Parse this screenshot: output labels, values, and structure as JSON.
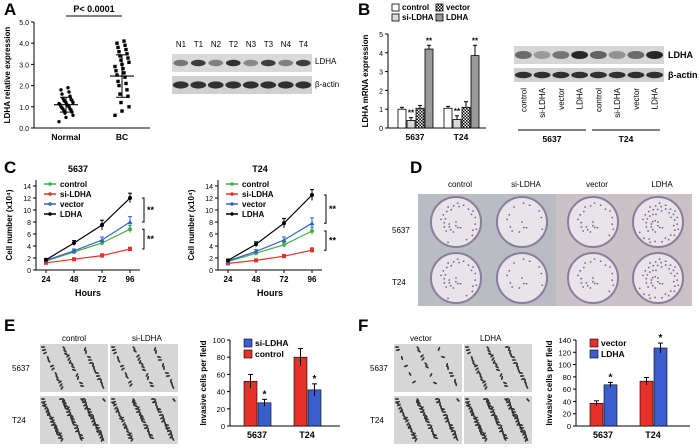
{
  "panels": {
    "A": {
      "letter": "A",
      "ylabel": "LDHA relative expression",
      "pvalue": "P< 0.0001",
      "groups": [
        "Normal",
        "BC"
      ],
      "blot_lanes": [
        "N1",
        "T1",
        "N2",
        "T2",
        "N3",
        "T3",
        "N4",
        "T4"
      ],
      "blot_rows": [
        "LDHA",
        "β-actin"
      ]
    },
    "B": {
      "letter": "B",
      "ylabel": "LDHA mRNA expression",
      "legend": [
        "control",
        "si-LDHA",
        "vector",
        "LDHA"
      ],
      "sig": "**",
      "blot_lanes": [
        "control",
        "si-LDHA",
        "vector",
        "LDHA",
        "control",
        "si-LDHA",
        "vector",
        "LDHA"
      ],
      "blot_groups": [
        "5637",
        "T24"
      ],
      "blot_rows": [
        "LDHA",
        "β-actin"
      ]
    },
    "C": {
      "letter": "C",
      "legend": [
        "control",
        "si-LDHA",
        "vector",
        "LDHA"
      ],
      "sig": "**"
    },
    "D": {
      "letter": "D",
      "cols": [
        "control",
        "si-LDHA",
        "vector",
        "LDHA"
      ],
      "rows": [
        "5637",
        "T24"
      ]
    },
    "E": {
      "letter": "E",
      "cols": [
        "control",
        "si-LDHA"
      ],
      "rows": [
        "5637",
        "T24"
      ],
      "ylabel": "Invasive cells per field",
      "sig": "*"
    },
    "F": {
      "letter": "F",
      "cols": [
        "vector",
        "LDHA"
      ],
      "rows": [
        "5637",
        "T24"
      ],
      "ylabel": "Invasive cells per field",
      "sig": "*"
    }
  },
  "chart_data": [
    {
      "id": "A-scatter",
      "type": "scatter",
      "categories": [
        "Normal",
        "BC"
      ],
      "ylabel": "LDHA relative expression",
      "ylim": [
        0,
        5
      ],
      "yticks": [
        "0.0",
        "1.0",
        "2.0",
        "3.0",
        "4.0",
        "5.0"
      ],
      "series": [
        {
          "values": [
            0.3,
            0.5,
            0.6,
            0.7,
            0.75,
            0.8,
            0.85,
            0.9,
            0.9,
            0.95,
            1.0,
            1.0,
            1.05,
            1.1,
            1.1,
            1.15,
            1.2,
            1.2,
            1.25,
            1.3,
            1.3,
            1.35,
            1.4,
            1.5,
            1.6,
            1.7,
            1.8,
            1.9
          ],
          "mean": 1.1,
          "sd": 0.35
        },
        {
          "values": [
            0.6,
            0.8,
            1.0,
            1.2,
            1.5,
            1.6,
            1.8,
            2.0,
            2.1,
            2.2,
            2.4,
            2.5,
            2.6,
            2.7,
            2.8,
            2.9,
            3.0,
            3.1,
            3.2,
            3.3,
            3.4,
            3.5,
            3.6,
            3.7,
            3.8,
            3.9,
            4.0,
            4.1
          ],
          "mean": 2.45,
          "sd": 1.0
        }
      ]
    },
    {
      "id": "B-bar",
      "type": "bar",
      "categories": [
        "5637",
        "T24"
      ],
      "ylabel": "LDHA mRNA expression",
      "ylim": [
        0,
        5
      ],
      "yticks": [
        "0",
        "1",
        "2",
        "3",
        "4",
        "5"
      ],
      "series": [
        {
          "name": "control",
          "values": [
            1.0,
            1.05
          ],
          "err": [
            0.1,
            0.1
          ]
        },
        {
          "name": "si-LDHA",
          "values": [
            0.4,
            0.45
          ],
          "err": [
            0.15,
            0.2
          ]
        },
        {
          "name": "vector",
          "values": [
            1.05,
            1.1
          ],
          "err": [
            0.15,
            0.3
          ]
        },
        {
          "name": "LDHA",
          "values": [
            4.2,
            3.85
          ],
          "err": [
            0.2,
            0.55
          ]
        }
      ]
    },
    {
      "id": "C-5637",
      "type": "line",
      "title": "5637",
      "xlabel": "Hours",
      "ylabel": "Cell number (x10⁴)",
      "x": [
        24,
        48,
        72,
        96
      ],
      "xticks": [
        "24",
        "48",
        "72",
        "96"
      ],
      "ylim": [
        0,
        15
      ],
      "yticks": [
        "0",
        "2",
        "4",
        "6",
        "8",
        "10",
        "12",
        "14"
      ],
      "series": [
        {
          "name": "control",
          "values": [
            1.5,
            3.0,
            4.5,
            6.8
          ],
          "err": [
            0.2,
            0.3,
            0.4,
            0.6
          ],
          "color": "#3cb44b"
        },
        {
          "name": "si-LDHA",
          "values": [
            1.2,
            1.8,
            2.4,
            3.5
          ],
          "err": [
            0.1,
            0.2,
            0.3,
            0.3
          ],
          "color": "#e6302a"
        },
        {
          "name": "vector",
          "values": [
            1.6,
            3.2,
            5.0,
            8.0
          ],
          "err": [
            0.2,
            0.3,
            0.5,
            0.9
          ],
          "color": "#3a5fcd"
        },
        {
          "name": "LDHA",
          "values": [
            1.7,
            4.5,
            7.5,
            12.0
          ],
          "err": [
            0.2,
            0.4,
            0.8,
            0.8
          ],
          "color": "#000000"
        }
      ]
    },
    {
      "id": "C-T24",
      "type": "line",
      "title": "T24",
      "xlabel": "Hours",
      "ylabel": "Cell number (x10⁴)",
      "x": [
        24,
        48,
        72,
        96
      ],
      "xticks": [
        "24",
        "48",
        "72",
        "96"
      ],
      "ylim": [
        0,
        15
      ],
      "yticks": [
        "0",
        "2",
        "4",
        "6",
        "8",
        "10",
        "12",
        "14"
      ],
      "series": [
        {
          "name": "control",
          "values": [
            1.4,
            2.8,
            4.2,
            6.5
          ],
          "err": [
            0.2,
            0.3,
            0.4,
            0.6
          ],
          "color": "#3cb44b"
        },
        {
          "name": "si-LDHA",
          "values": [
            1.1,
            1.6,
            2.3,
            3.3
          ],
          "err": [
            0.1,
            0.2,
            0.3,
            0.4
          ],
          "color": "#e6302a"
        },
        {
          "name": "vector",
          "values": [
            1.5,
            3.1,
            5.0,
            7.8
          ],
          "err": [
            0.2,
            0.3,
            0.5,
            0.9
          ],
          "color": "#3a5fcd"
        },
        {
          "name": "LDHA",
          "values": [
            1.6,
            4.3,
            7.8,
            12.5
          ],
          "err": [
            0.2,
            0.4,
            0.8,
            0.9
          ],
          "color": "#000000"
        }
      ]
    },
    {
      "id": "E-bar",
      "type": "bar",
      "categories": [
        "5637",
        "T24"
      ],
      "ylabel": "Invasive cells per field",
      "ylim": [
        0,
        100
      ],
      "yticks": [
        "0",
        "20",
        "40",
        "60",
        "80",
        "100"
      ],
      "series": [
        {
          "name": "control",
          "values": [
            52,
            80
          ],
          "err": [
            8,
            10
          ],
          "color": "#e6302a"
        },
        {
          "name": "si-LDHA",
          "values": [
            27,
            42
          ],
          "err": [
            4,
            7
          ],
          "color": "#3a5fcd"
        }
      ],
      "legend_order": [
        "si-LDHA",
        "control"
      ]
    },
    {
      "id": "F-bar",
      "type": "bar",
      "categories": [
        "5637",
        "T24"
      ],
      "ylabel": "Invasive cells per field",
      "ylim": [
        0,
        140
      ],
      "yticks": [
        "0",
        "20",
        "40",
        "60",
        "80",
        "100",
        "120",
        "140"
      ],
      "series": [
        {
          "name": "vector",
          "values": [
            37,
            73
          ],
          "err": [
            4,
            6
          ],
          "color": "#e6302a"
        },
        {
          "name": "LDHA",
          "values": [
            67,
            127
          ],
          "err": [
            4,
            8
          ],
          "color": "#3a5fcd"
        }
      ]
    }
  ]
}
